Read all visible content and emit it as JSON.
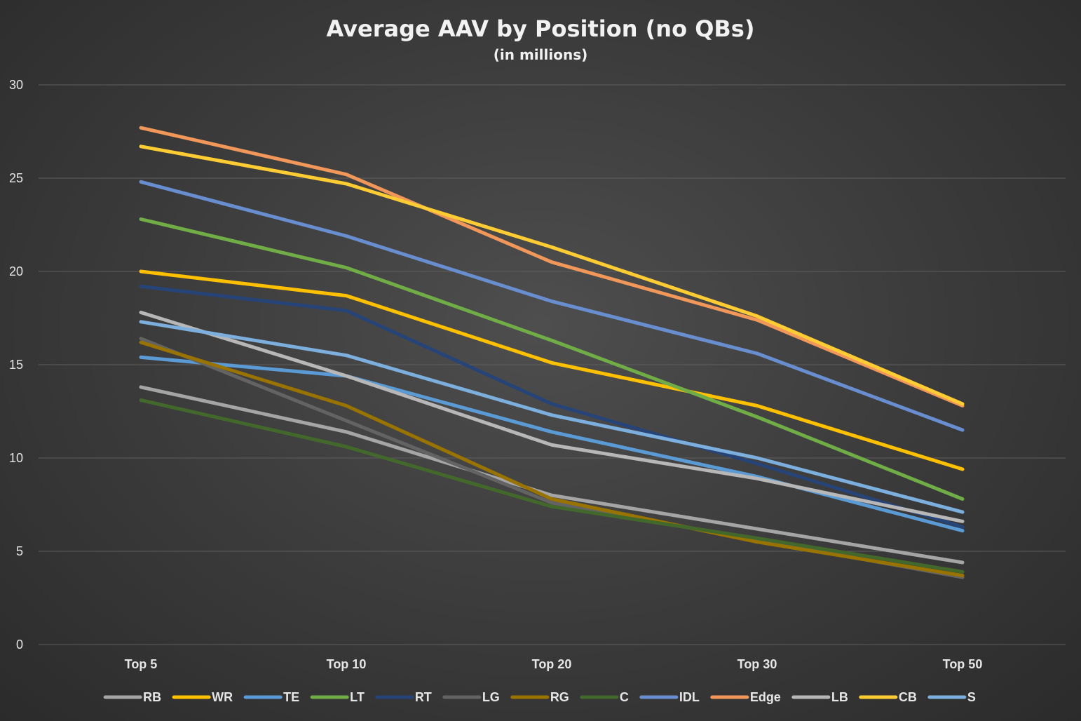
{
  "chart_data": {
    "type": "line",
    "title": "Average AAV by Position (no QBs)",
    "subtitle": "(in millions)",
    "categories": [
      "Top 5",
      "Top 10",
      "Top 20",
      "Top 30",
      "Top 50"
    ],
    "ylim": [
      0,
      30
    ],
    "yticks": [
      0,
      5,
      10,
      15,
      20,
      25,
      30
    ],
    "grid": true,
    "legend": "bottom",
    "series": [
      {
        "name": "RB",
        "color": "#a5a5a5",
        "values": [
          13.8,
          11.4,
          8.0,
          6.2,
          4.4
        ]
      },
      {
        "name": "WR",
        "color": "#ffc000",
        "values": [
          20.0,
          18.7,
          15.1,
          12.8,
          9.4
        ]
      },
      {
        "name": "TE",
        "color": "#5b9bd5",
        "values": [
          15.4,
          14.4,
          11.4,
          9.0,
          6.1
        ]
      },
      {
        "name": "LT",
        "color": "#70ad47",
        "values": [
          22.8,
          20.2,
          16.3,
          12.2,
          7.8
        ]
      },
      {
        "name": "RT",
        "color": "#264478",
        "values": [
          19.2,
          17.9,
          12.9,
          9.7,
          6.3
        ]
      },
      {
        "name": "LG",
        "color": "#636363",
        "values": [
          16.4,
          12.0,
          7.6,
          5.6,
          3.6
        ]
      },
      {
        "name": "RG",
        "color": "#997300",
        "values": [
          16.2,
          12.8,
          7.8,
          5.5,
          3.7
        ]
      },
      {
        "name": "C",
        "color": "#43682b",
        "values": [
          13.1,
          10.6,
          7.4,
          5.7,
          3.9
        ]
      },
      {
        "name": "IDL",
        "color": "#698ed0",
        "values": [
          24.8,
          21.9,
          18.4,
          15.6,
          11.5
        ]
      },
      {
        "name": "Edge",
        "color": "#f1975a",
        "values": [
          27.7,
          25.2,
          20.5,
          17.4,
          12.8
        ]
      },
      {
        "name": "LB",
        "color": "#b7b7b7",
        "values": [
          17.8,
          14.4,
          10.7,
          8.9,
          6.6
        ]
      },
      {
        "name": "CB",
        "color": "#ffcd33",
        "values": [
          26.7,
          24.7,
          21.3,
          17.6,
          12.9
        ]
      },
      {
        "name": "S",
        "color": "#7cafdd",
        "values": [
          17.3,
          15.5,
          12.3,
          10.0,
          7.1
        ]
      }
    ]
  }
}
